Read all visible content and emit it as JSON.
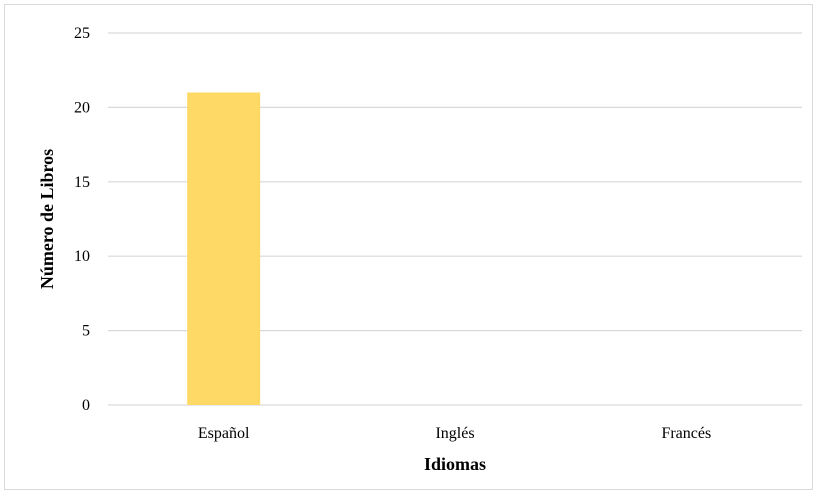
{
  "chart_data": {
    "type": "bar",
    "categories": [
      "Español",
      "Inglés",
      "Francés"
    ],
    "values": [
      21,
      0,
      0
    ],
    "xlabel": "Idiomas",
    "ylabel": "Número de Libros",
    "ylim": [
      0,
      25
    ],
    "yticks": [
      "0",
      "5",
      "10",
      "15",
      "20",
      "25"
    ],
    "grid": true,
    "legend": "none",
    "bar_color": "#FFD966",
    "gridline_color": "#d9d9d9"
  }
}
